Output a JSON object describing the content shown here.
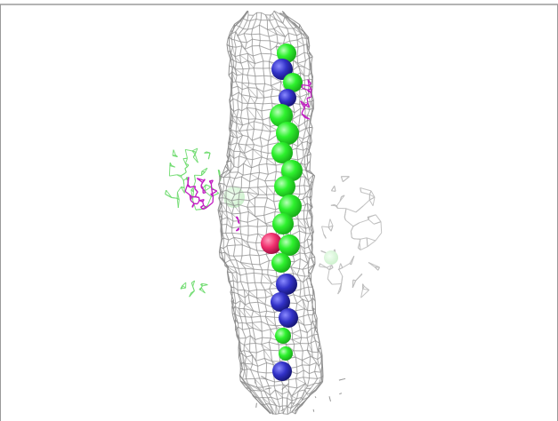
{
  "colors": {
    "background": "#ffffff",
    "frame_line": "#6a6a6a",
    "mesh_gray": "#8c8c8c",
    "mesh_gray_light": "#bcbcbc",
    "mesh_green": "#6fdc6f",
    "mesh_magenta": "#c21fc2",
    "atom_green": "#2ef22e",
    "atom_green_shade": "#17a817",
    "atom_blue": "#3232c8",
    "atom_blue_shade": "#141470",
    "atom_pink": "#f0306e",
    "atom_pink_shade": "#9a0a3c"
  },
  "scene": {
    "subject": "electron-density-mesh-with-atoms"
  }
}
